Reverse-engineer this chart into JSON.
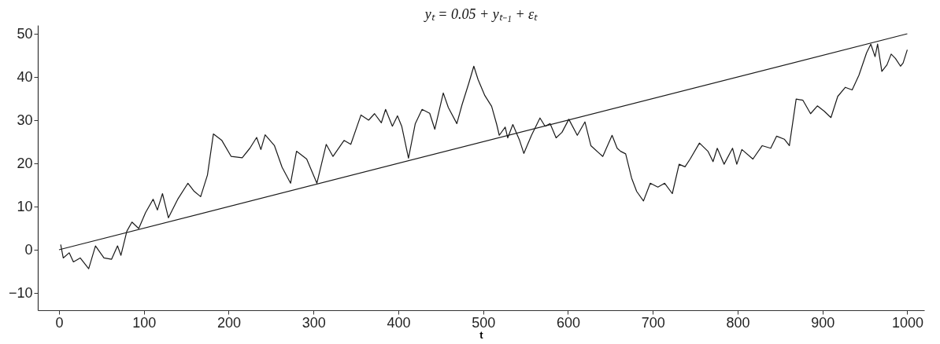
{
  "chart_data": {
    "type": "line",
    "title": "yₜ = 0.05 + yₜ₋₁ + εₜ",
    "xlabel": "t",
    "xlim": [
      -25,
      1020
    ],
    "ylim": [
      -14,
      52
    ],
    "xticks": [
      0,
      100,
      200,
      300,
      400,
      500,
      600,
      700,
      800,
      900,
      1000
    ],
    "yticks": [
      -10,
      0,
      10,
      20,
      30,
      40,
      50
    ],
    "grid": false,
    "marker": "none",
    "line_style": "solid",
    "series": [
      {
        "color": "#1a1a1a",
        "x": [
          2,
          5,
          12,
          17,
          25,
          35,
          43,
          53,
          62,
          69,
          73,
          80,
          86,
          94,
          102,
          111,
          116,
          122,
          129,
          140,
          152,
          159,
          167,
          175,
          182,
          192,
          203,
          216,
          225,
          233,
          238,
          243,
          254,
          263,
          273,
          280,
          292,
          304,
          315,
          323,
          336,
          344,
          356,
          365,
          372,
          380,
          385,
          393,
          399,
          404,
          412,
          420,
          428,
          437,
          443,
          453,
          459,
          469,
          475,
          483,
          489,
          494,
          502,
          510,
          516,
          519,
          526,
          529,
          535,
          543,
          548,
          557,
          567,
          573,
          579,
          586,
          593,
          601,
          611,
          620,
          627,
          641,
          652,
          658,
          662,
          668,
          675,
          681,
          689,
          697,
          706,
          714,
          723,
          731,
          738,
          744,
          755,
          765,
          771,
          776,
          784,
          794,
          799,
          805,
          818,
          829,
          839,
          846,
          855,
          861,
          869,
          877,
          886,
          894,
          902,
          910,
          918,
          927,
          935,
          943,
          952,
          957,
          962,
          965,
          970,
          976,
          981,
          986,
          992,
          995,
          1000
        ],
        "values": [
          1.2,
          -1.9,
          -0.7,
          -2.8,
          -1.9,
          -4.4,
          0.9,
          -1.9,
          -2.2,
          0.9,
          -1.3,
          4.3,
          6.4,
          4.9,
          8.6,
          11.7,
          9.2,
          13.0,
          7.4,
          11.7,
          15.4,
          13.6,
          12.3,
          17.3,
          26.8,
          25.3,
          21.6,
          21.3,
          23.5,
          26.0,
          23.2,
          26.6,
          24.1,
          19.1,
          15.4,
          22.8,
          21.0,
          15.4,
          24.4,
          21.6,
          25.3,
          24.4,
          31.2,
          30.0,
          31.5,
          29.4,
          32.5,
          28.6,
          31.0,
          28.6,
          21.2,
          29.2,
          32.5,
          31.6,
          27.9,
          36.3,
          32.9,
          29.2,
          33.5,
          38.5,
          42.5,
          39.4,
          35.7,
          33.2,
          29.0,
          26.5,
          28.4,
          25.9,
          29.0,
          25.3,
          22.3,
          26.5,
          30.5,
          28.6,
          29.2,
          25.9,
          27.2,
          30.2,
          26.5,
          29.6,
          24.1,
          21.6,
          26.5,
          23.5,
          22.8,
          22.2,
          16.6,
          13.5,
          11.3,
          15.4,
          14.5,
          15.4,
          13.0,
          19.8,
          19.2,
          21.0,
          24.7,
          22.8,
          20.4,
          23.5,
          19.8,
          23.5,
          19.8,
          23.2,
          21.0,
          24.1,
          23.5,
          26.3,
          25.6,
          24.1,
          34.9,
          34.6,
          31.5,
          33.3,
          32.1,
          30.6,
          35.5,
          37.6,
          37.0,
          40.4,
          45.6,
          47.6,
          44.7,
          47.6,
          41.3,
          42.8,
          45.3,
          44.3,
          42.5,
          43.2,
          46.3
        ]
      },
      {
        "color": "#1a1a1a",
        "x": [
          0,
          1000
        ],
        "values": [
          0,
          50
        ]
      }
    ]
  }
}
